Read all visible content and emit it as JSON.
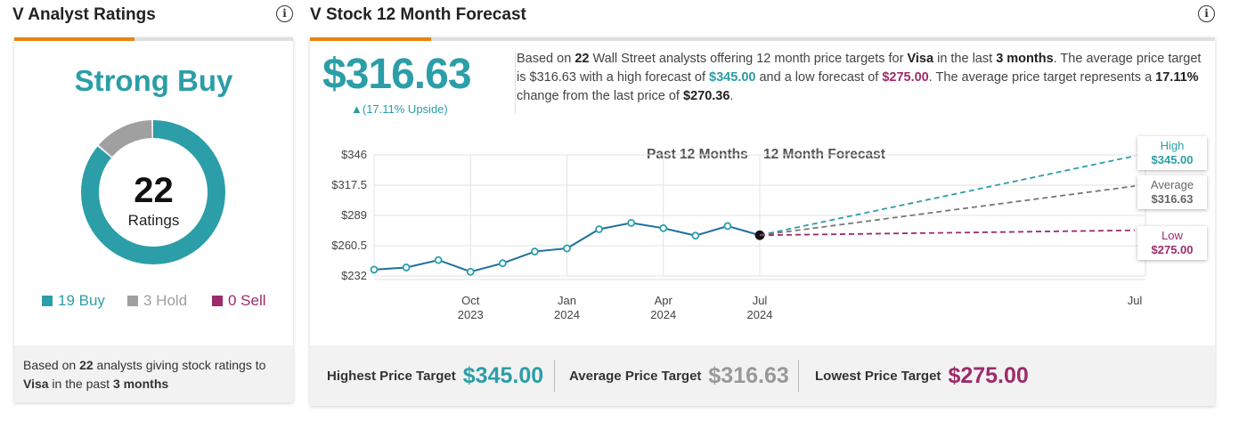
{
  "left": {
    "title": "V Analyst Ratings",
    "consensus": "Strong Buy",
    "total": "22",
    "total_label": "Ratings",
    "buy": 19,
    "hold": 3,
    "sell": 0,
    "legend": {
      "buy": "19 Buy",
      "hold": "3 Hold",
      "sell": "0 Sell"
    },
    "footer": {
      "p1": "Based on ",
      "n": "22",
      "p2": " analysts giving stock ratings to",
      "ticker": "Visa",
      "p3": " in the past ",
      "period": "3 months"
    },
    "colors": {
      "buy": "#2b9ea8",
      "hold": "#a0a0a0",
      "sell": "#9c2b6b"
    }
  },
  "right": {
    "title": "V Stock 12 Month Forecast",
    "price": "$316.63",
    "upside": "▲(17.11% Upside)",
    "summary": {
      "a": "Based on ",
      "n": "22",
      "b": " Wall Street analysts offering 12 month price targets for ",
      "name": "Visa",
      "c": " in the last ",
      "period": "3 months",
      "d": ". The average price target is ",
      "avg": "$316.63",
      "e": " with a high forecast of ",
      "high": "$345.00",
      "f": " and a low forecast of ",
      "low": "$275.00",
      "g": ". The average price target represents a ",
      "change": "17.11%",
      "h": " change from the last price of ",
      "last": "$270.36",
      "i": "."
    },
    "stats": {
      "high_label": "Highest Price Target",
      "high": "$345.00",
      "avg_label": "Average Price Target",
      "avg": "$316.63",
      "low_label": "Lowest Price Target",
      "low": "$275.00"
    },
    "callouts": {
      "high_title": "High",
      "high_value": "$345.00",
      "avg_title": "Average",
      "avg_value": "$316.63",
      "low_title": "Low",
      "low_value": "$275.00"
    }
  },
  "chart_data": {
    "type": "line",
    "section_labels": [
      "Past 12 Months",
      "12 Month Forecast"
    ],
    "y_ticks": [
      "$346",
      "$317.5",
      "$289",
      "$260.5",
      "$232"
    ],
    "ylim": [
      232,
      346
    ],
    "x_ticks": [
      {
        "month": "Oct",
        "year": "2023"
      },
      {
        "month": "Jan",
        "year": "2024"
      },
      {
        "month": "Apr",
        "year": "2024"
      },
      {
        "month": "Jul",
        "year": "2024"
      }
    ],
    "right_edge_label": "Jul",
    "grid": true,
    "history": {
      "x": [
        "2023-07",
        "2023-08",
        "2023-09",
        "2023-10",
        "2023-11",
        "2023-12",
        "2024-01",
        "2024-02",
        "2024-03",
        "2024-04",
        "2024-05",
        "2024-06",
        "2024-07"
      ],
      "values": [
        238,
        240,
        247,
        236,
        244,
        255,
        258,
        276,
        282,
        277,
        270,
        279,
        270.36
      ]
    },
    "forecast": {
      "start": "2024-07",
      "end": "2025-07",
      "high": 345.0,
      "average": 316.63,
      "low": 275.0
    },
    "colors": {
      "history": "#1f6f9e",
      "high": "#2b9ea8",
      "average": "#777777",
      "low": "#9c2b6b"
    }
  }
}
